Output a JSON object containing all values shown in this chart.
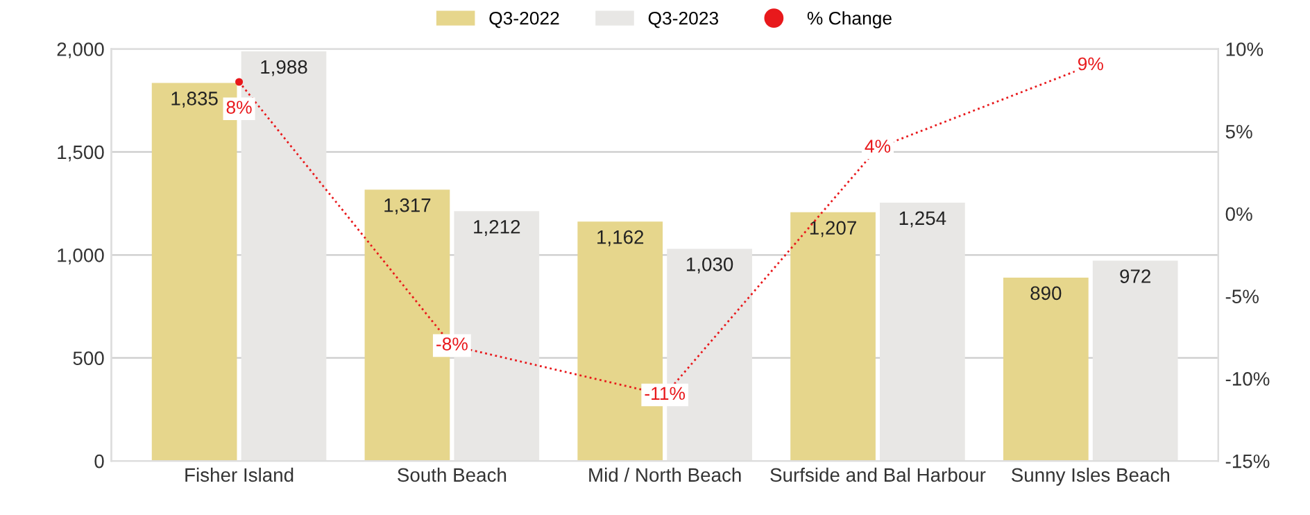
{
  "chart_data": {
    "type": "bar",
    "categories": [
      "Fisher Island",
      "South Beach",
      "Mid / North Beach",
      "Surfside and Bal Harbour",
      "Sunny Isles Beach"
    ],
    "series": [
      {
        "name": "Q3-2022",
        "color": "#e6d68c",
        "values": [
          1835,
          1317,
          1162,
          1207,
          890
        ],
        "value_labels": [
          "1,835",
          "1,317",
          "1,162",
          "1,207",
          "890"
        ]
      },
      {
        "name": "Q3-2023",
        "color": "#e8e7e5",
        "values": [
          1988,
          1212,
          1030,
          1254,
          972
        ],
        "value_labels": [
          "1,988",
          "1,212",
          "1,030",
          "1,254",
          "972"
        ]
      },
      {
        "name": "% Change",
        "type": "line",
        "axis": "y2",
        "color": "#e8191c",
        "marker": "circle",
        "line_style": "dotted",
        "values": [
          8,
          -8,
          -11,
          4,
          9
        ],
        "value_labels": [
          "8%",
          "-8%",
          "-11%",
          "4%",
          "9%"
        ]
      }
    ],
    "ylim": [
      0,
      2000
    ],
    "yticks": [
      0,
      500,
      {
        "value": 1000,
        "label": "1,000"
      },
      {
        "value": 1500,
        "label": "1,500"
      },
      {
        "value": 2000,
        "label": "2,000"
      }
    ],
    "y2lim": [
      -15,
      10
    ],
    "y2ticks": [
      {
        "value": -15,
        "label": "-15%"
      },
      {
        "value": -10,
        "label": "-10%"
      },
      {
        "value": -5,
        "label": "-5%"
      },
      {
        "value": 0,
        "label": "0%"
      },
      {
        "value": 5,
        "label": "5%"
      },
      {
        "value": 10,
        "label": "10%"
      }
    ],
    "grid": "y",
    "legend": "top"
  }
}
